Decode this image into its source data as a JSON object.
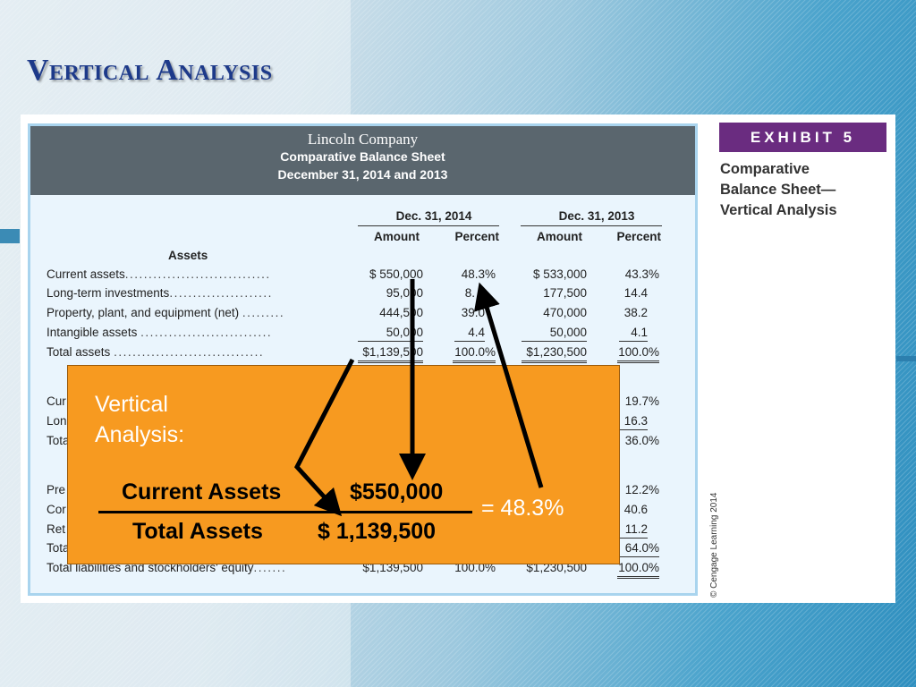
{
  "slide": {
    "title": "Vertical Analysis"
  },
  "sheet": {
    "company": "Lincoln Company",
    "title": "Comparative Balance Sheet",
    "date": "December 31, 2014 and 2013",
    "col_groups": [
      "Dec. 31, 2014",
      "Dec. 31, 2013"
    ],
    "col_headers": [
      "Amount",
      "Percent",
      "Amount",
      "Percent"
    ],
    "section_assets": "Assets",
    "rows": [
      {
        "label": "Current assets",
        "dots": "...............................",
        "a1": "$  550,000",
        "p1": "48.3%",
        "a2": "$  533,000",
        "p2": "43.3%"
      },
      {
        "label": "Long-term investments",
        "dots": "......................",
        "a1": "95,000",
        "p1": "8.",
        "a2": "177,500",
        "p2": "14.4"
      },
      {
        "label": "Property, plant, and equipment (net)",
        "dots": ".........",
        "a1": "444,500",
        "p1": "39.0",
        "a2": "470,000",
        "p2": "38.2"
      },
      {
        "label": "Intangible assets",
        "dots": "............................",
        "a1": "50,000",
        "p1": "4.4",
        "a2": "50,000",
        "p2": "4.1"
      },
      {
        "label": "Total assets",
        "dots": "................................",
        "a1": "$1,139,500",
        "p1": "100.0%",
        "a2": "$1,230,500",
        "p2": "100.0%"
      }
    ],
    "hidden_rows": [
      {
        "label": "Cur",
        "p2": "19.7%"
      },
      {
        "label": "Lon",
        "p2": "16.3"
      },
      {
        "label": "Tota",
        "p2": "36.0%"
      },
      {
        "label": "Pre",
        "p2": "12.2%"
      },
      {
        "label": "Cor",
        "p2": "40.6"
      },
      {
        "label": "Ret",
        "p2": "11.2"
      },
      {
        "label": "Tota",
        "p2": "64.0%"
      }
    ],
    "final_row": {
      "label": "Total liabilities and stockholders' equity",
      "dots": ".......",
      "a1": "$1,139,500",
      "p1": "100.0%",
      "a2": "$1,230,500",
      "p2": "100.0%"
    }
  },
  "exhibit": {
    "tag": "EXHIBIT 5",
    "caption_lines": [
      "Comparative",
      "Balance Sheet—",
      "Vertical Analysis"
    ],
    "copyright": "© Cengage Learning 2014"
  },
  "overlay": {
    "label_lines": [
      "Vertical",
      "Analysis:"
    ],
    "numerator_label": "Current Assets",
    "numerator_value": "$550,000",
    "denominator_label": "Total Assets",
    "denominator_value": "$ 1,139,500",
    "result": "=  48.3%",
    "colors": {
      "box": "#f79a20",
      "text": "#ffffff"
    }
  }
}
